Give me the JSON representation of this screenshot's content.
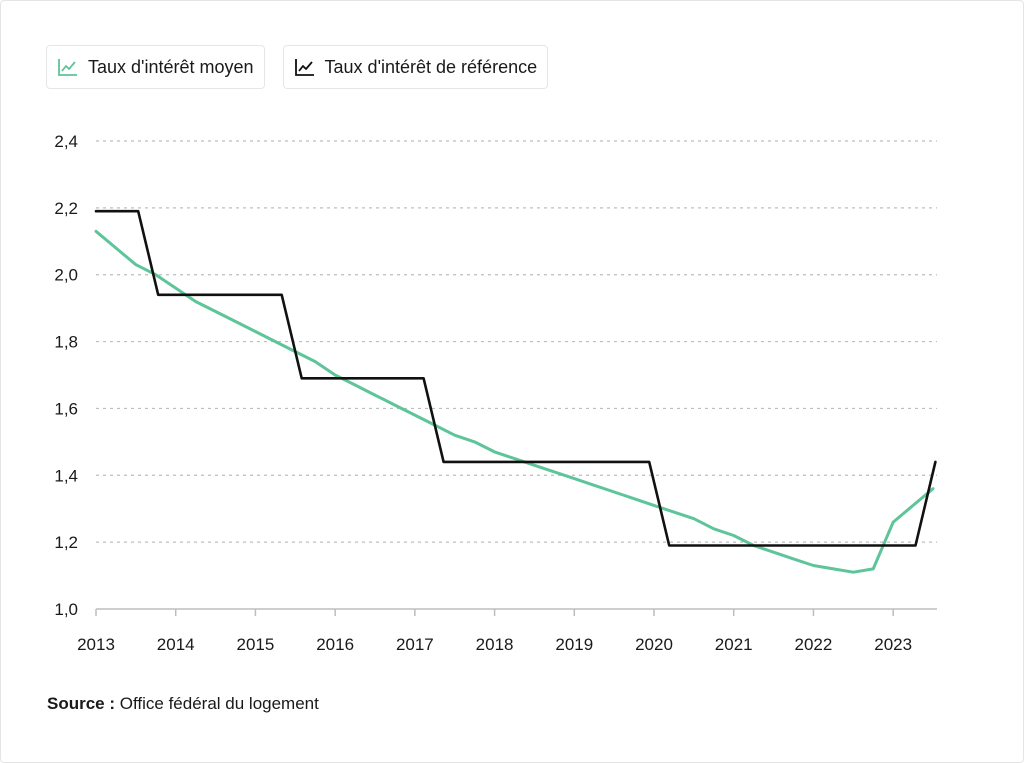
{
  "legend": {
    "items": [
      {
        "label": "Taux d'intérêt moyen",
        "color": "#5ec49a",
        "icon": "line-chart-icon"
      },
      {
        "label": "Taux d'intérêt de référence",
        "color": "#111111",
        "icon": "line-chart-icon"
      }
    ]
  },
  "source": {
    "label": "Source :",
    "text": "Office fédéral du logement"
  },
  "chart_data": {
    "type": "line",
    "title": "",
    "xlabel": "",
    "ylabel": "",
    "xlim": [
      2013,
      2023.55
    ],
    "ylim": [
      1.0,
      2.4
    ],
    "x_ticks": [
      "2013",
      "2014",
      "2015",
      "2016",
      "2017",
      "2018",
      "2019",
      "2020",
      "2021",
      "2022",
      "2023"
    ],
    "y_ticks": [
      "1,0",
      "1,2",
      "1,4",
      "1,6",
      "1,8",
      "2,0",
      "2,2",
      "2,4"
    ],
    "grid": "horizontal-dotted",
    "legend_position": "top-left",
    "series": [
      {
        "name": "Taux d'intérêt moyen",
        "color": "#5ec49a",
        "points": [
          [
            2013.0,
            2.13
          ],
          [
            2013.25,
            2.08
          ],
          [
            2013.5,
            2.03
          ],
          [
            2013.75,
            2.0
          ],
          [
            2014.0,
            1.96
          ],
          [
            2014.25,
            1.92
          ],
          [
            2014.5,
            1.89
          ],
          [
            2014.75,
            1.86
          ],
          [
            2015.0,
            1.83
          ],
          [
            2015.25,
            1.8
          ],
          [
            2015.5,
            1.77
          ],
          [
            2015.75,
            1.74
          ],
          [
            2016.0,
            1.7
          ],
          [
            2016.25,
            1.67
          ],
          [
            2016.5,
            1.64
          ],
          [
            2016.75,
            1.61
          ],
          [
            2017.0,
            1.58
          ],
          [
            2017.25,
            1.55
          ],
          [
            2017.5,
            1.52
          ],
          [
            2017.75,
            1.5
          ],
          [
            2018.0,
            1.47
          ],
          [
            2018.25,
            1.45
          ],
          [
            2018.5,
            1.43
          ],
          [
            2018.75,
            1.41
          ],
          [
            2019.0,
            1.39
          ],
          [
            2019.25,
            1.37
          ],
          [
            2019.5,
            1.35
          ],
          [
            2019.75,
            1.33
          ],
          [
            2020.0,
            1.31
          ],
          [
            2020.25,
            1.29
          ],
          [
            2020.5,
            1.27
          ],
          [
            2020.75,
            1.24
          ],
          [
            2021.0,
            1.22
          ],
          [
            2021.25,
            1.19
          ],
          [
            2021.5,
            1.17
          ],
          [
            2021.75,
            1.15
          ],
          [
            2022.0,
            1.13
          ],
          [
            2022.25,
            1.12
          ],
          [
            2022.5,
            1.11
          ],
          [
            2022.75,
            1.12
          ],
          [
            2023.0,
            1.26
          ],
          [
            2023.25,
            1.31
          ],
          [
            2023.5,
            1.36
          ]
        ]
      },
      {
        "name": "Taux d'intérêt de référence",
        "color": "#111111",
        "points": [
          [
            2013.0,
            2.19
          ],
          [
            2013.53,
            2.19
          ],
          [
            2013.78,
            1.94
          ],
          [
            2015.33,
            1.94
          ],
          [
            2015.58,
            1.69
          ],
          [
            2017.11,
            1.69
          ],
          [
            2017.36,
            1.44
          ],
          [
            2019.94,
            1.44
          ],
          [
            2020.19,
            1.19
          ],
          [
            2023.28,
            1.19
          ],
          [
            2023.53,
            1.44
          ]
        ]
      }
    ]
  }
}
